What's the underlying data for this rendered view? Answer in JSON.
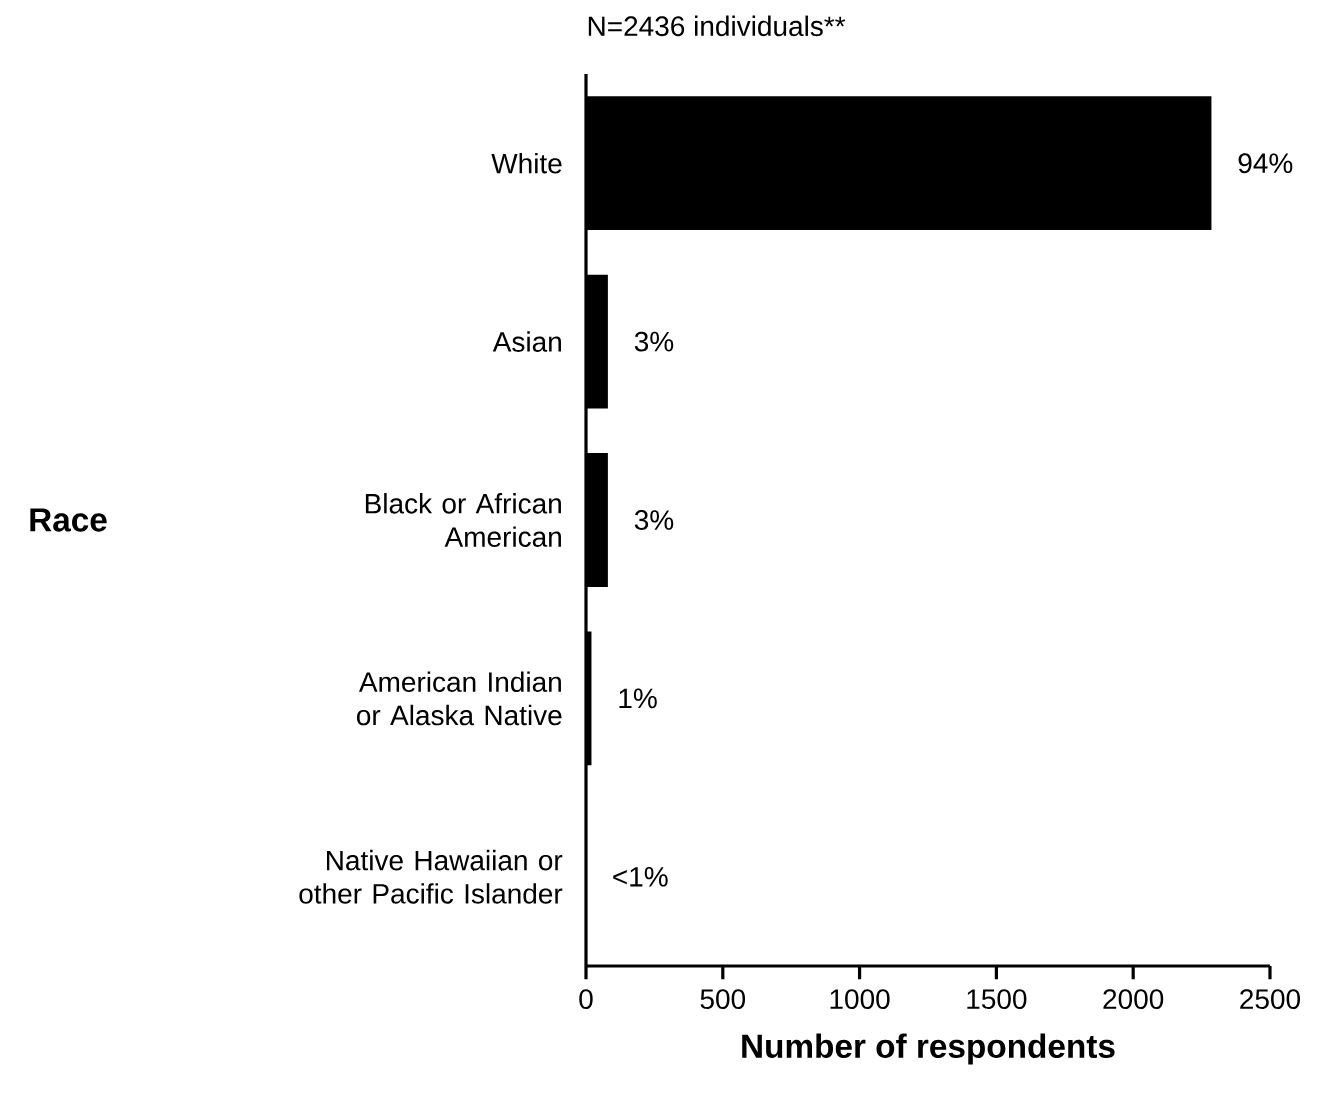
{
  "chart_data": {
    "type": "bar",
    "orientation": "horizontal",
    "title": "N=2436 individuals**",
    "xlabel": "Number of respondents",
    "categories": [
      "White",
      "Asian",
      "Black or African American",
      "American Indian or Alaska Native",
      "Native Hawaiian or other Pacific Islander"
    ],
    "values": [
      2286,
      80,
      80,
      20,
      null
    ],
    "annotations": [
      "Race",
      {
        "text": "94%",
        "x": 2286,
        "y": "White"
      },
      {
        "text": "3%",
        "x": 80,
        "y": "Asian"
      },
      {
        "text": "3%",
        "x": 80,
        "y": "Black or African American"
      },
      {
        "text": "1%",
        "x": 20,
        "y": "American Indian or Alaska Native"
      },
      "<1%"
    ],
    "color": "#000000",
    "xlim": [
      0,
      2500
    ],
    "xticks": [
      0,
      500,
      1000,
      1500,
      2000,
      2500
    ]
  }
}
